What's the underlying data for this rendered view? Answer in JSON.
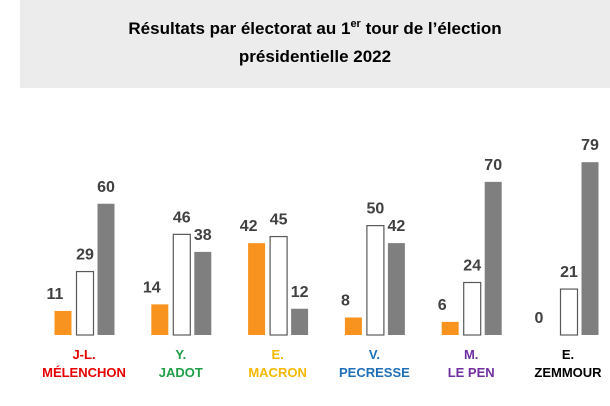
{
  "chart_data": {
    "type": "bar",
    "title": [
      "Résultats par électorat au 1",
      "er",
      " tour de l’élection",
      "présidentielle 2022"
    ],
    "categories": [
      "J-L.\nMÉLENCHON",
      "Y.\nJADOT",
      "E.\nMACRON",
      "V.\nPECRESSE",
      "M.\nLE PEN",
      "E.\nZEMMOUR"
    ],
    "category_colors": [
      "#e60000",
      "#1e9e46",
      "#f5b800",
      "#1f6fb8",
      "#7030a0",
      "#000000"
    ],
    "series": [
      {
        "color": "#f7931e",
        "values": [
          11,
          14,
          42,
          8,
          6,
          0
        ]
      },
      {
        "color": "#ffffff",
        "values": [
          29,
          46,
          45,
          50,
          24,
          21
        ]
      },
      {
        "color": "#7f7f7f",
        "values": [
          60,
          38,
          12,
          42,
          70,
          79
        ]
      }
    ],
    "ylim": [
      0,
      80
    ]
  }
}
